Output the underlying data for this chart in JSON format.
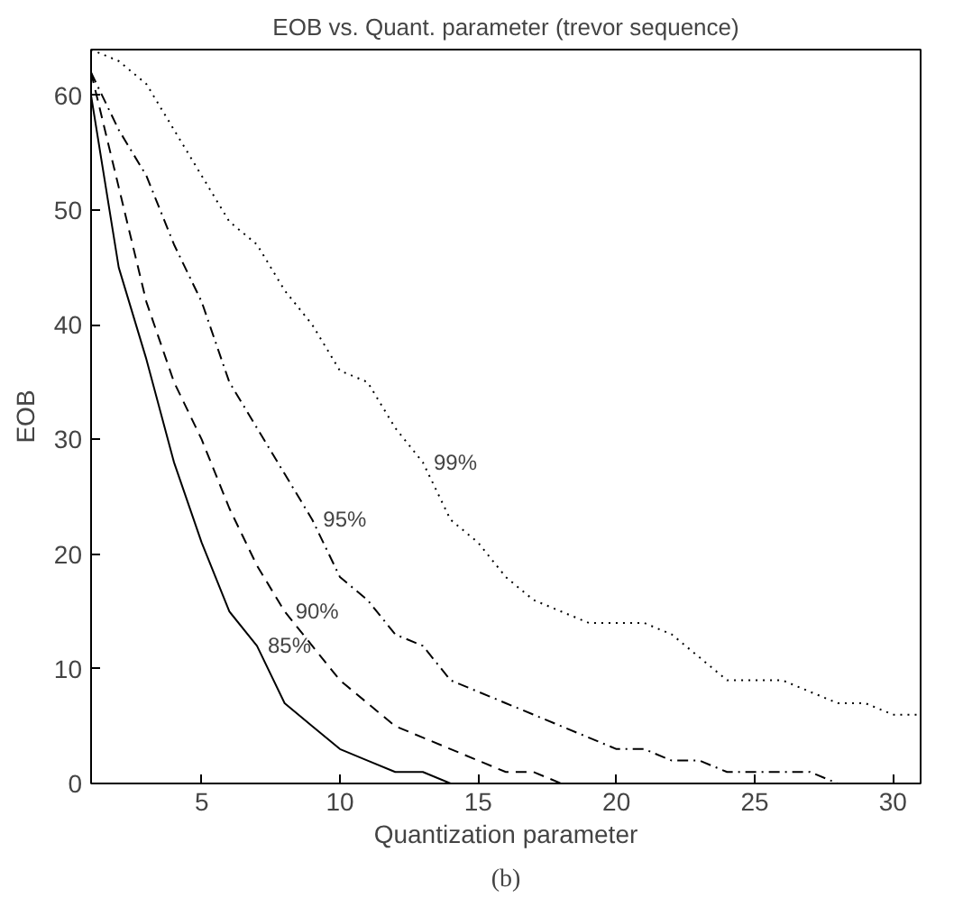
{
  "chart_data": {
    "type": "line",
    "title": "EOB vs. Quant. parameter (trevor sequence)",
    "xlabel": "Quantization parameter",
    "ylabel": "EOB",
    "x": [
      1,
      2,
      3,
      4,
      5,
      6,
      7,
      8,
      9,
      10,
      11,
      12,
      13,
      14,
      15,
      16,
      17,
      18,
      19,
      20,
      21,
      22,
      23,
      24,
      25,
      26,
      27,
      28,
      29,
      30,
      31
    ],
    "series": [
      {
        "color": "#000000",
        "line_style": "solid",
        "values": [
          60,
          45,
          37,
          28,
          21,
          15,
          12,
          7,
          5,
          3,
          2,
          1,
          1,
          0,
          null,
          null,
          null,
          null,
          null,
          null,
          null,
          null,
          null,
          null,
          null,
          null,
          null,
          null,
          null,
          null,
          null
        ]
      },
      {
        "color": "#000000",
        "line_style": "dashed",
        "values": [
          62,
          52,
          42,
          35,
          30,
          24,
          19,
          15,
          12,
          9,
          7,
          5,
          4,
          3,
          2,
          1,
          1,
          0,
          null,
          null,
          null,
          null,
          null,
          null,
          null,
          null,
          null,
          null,
          null,
          null,
          null
        ]
      },
      {
        "color": "#000000",
        "line_style": "dashdot",
        "values": [
          62,
          57,
          53,
          47,
          42,
          35,
          31,
          27,
          23,
          18,
          16,
          13,
          12,
          9,
          8,
          7,
          6,
          5,
          4,
          3,
          3,
          2,
          2,
          1,
          1,
          1,
          1,
          0,
          null,
          null,
          null
        ]
      },
      {
        "color": "#000000",
        "line_style": "dotted",
        "values": [
          64,
          63,
          61,
          57,
          53,
          49,
          47,
          43,
          40,
          36,
          35,
          31,
          28,
          23,
          21,
          18,
          16,
          15,
          14,
          14,
          14,
          13,
          11,
          9,
          9,
          9,
          8,
          7,
          7,
          6,
          6
        ]
      }
    ],
    "xlim": [
      1,
      31
    ],
    "ylim": [
      0,
      64
    ],
    "xticks": [
      5,
      10,
      15,
      20,
      25,
      30
    ],
    "yticks": [
      0,
      10,
      20,
      30,
      40,
      50,
      60
    ],
    "grid": false,
    "marker": "none",
    "annotations": [
      {
        "text": "85%",
        "x": 7,
        "y": 12
      },
      {
        "text": "90%",
        "x": 8,
        "y": 15
      },
      {
        "text": "95%",
        "x": 9,
        "y": 23
      },
      {
        "text": "99%",
        "x": 13,
        "y": 28
      },
      "(b)"
    ]
  }
}
